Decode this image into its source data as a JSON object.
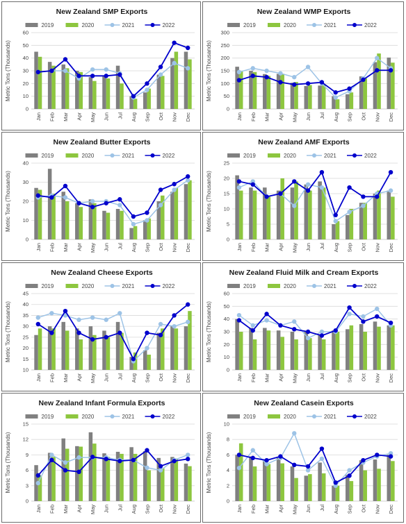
{
  "colors": {
    "2019": "#808080",
    "2020": "#8dc63f",
    "2021": "#9dc3e6",
    "2022": "#0000cc",
    "grid": "#d9d9d9",
    "axis": "#bfbfbf"
  },
  "legend_labels": [
    "2019",
    "2020",
    "2021",
    "2022"
  ],
  "chart_data": [
    {
      "type": "bar+line",
      "title": "New Zealand SMP Exports",
      "ylabel": "Metric Tons (Thousands)",
      "xlabel": "",
      "categories": [
        "Jan",
        "Feb",
        "Mar",
        "Apr",
        "May",
        "Jun",
        "Jul",
        "Aug",
        "Sep",
        "Oct",
        "Nov",
        "Dec"
      ],
      "yticks": [
        0,
        10,
        20,
        30,
        40,
        50,
        60
      ],
      "ylim": [
        0,
        60
      ],
      "grid": true,
      "legend": "top",
      "series": [
        {
          "name": "2019",
          "kind": "bar",
          "values": [
            45,
            37,
            35,
            30,
            25,
            26,
            34,
            10,
            13,
            27,
            40,
            45
          ]
        },
        {
          "name": "2020",
          "kind": "bar",
          "values": [
            41,
            34,
            32,
            29,
            22,
            24,
            20,
            8,
            16,
            26,
            45,
            39
          ]
        },
        {
          "name": "2021",
          "kind": "line",
          "values": [
            29,
            30,
            30,
            24,
            31,
            31,
            28,
            9,
            15,
            27,
            36,
            32
          ]
        },
        {
          "name": "2022",
          "kind": "line",
          "values": [
            29,
            30,
            39,
            26,
            26,
            26,
            27,
            10,
            20,
            33,
            52,
            48
          ]
        }
      ]
    },
    {
      "type": "bar+line",
      "title": "New Zealand WMP Exports",
      "ylabel": "Metric Tons (Thousands)",
      "xlabel": "",
      "categories": [
        "Jan",
        "Feb",
        "Mar",
        "Apr",
        "May",
        "Jun",
        "Jul",
        "Aug",
        "Sep",
        "Oct",
        "Nov",
        "Dec"
      ],
      "yticks": [
        0,
        50,
        100,
        150,
        200,
        250,
        300
      ],
      "ylim": [
        0,
        300
      ],
      "grid": true,
      "legend": "top",
      "series": [
        {
          "name": "2019",
          "kind": "bar",
          "values": [
            166,
            150,
            137,
            138,
            103,
            90,
            92,
            50,
            58,
            128,
            184,
            202
          ]
        },
        {
          "name": "2020",
          "kind": "bar",
          "values": [
            150,
            145,
            130,
            137,
            106,
            94,
            95,
            38,
            65,
            120,
            218,
            182
          ]
        },
        {
          "name": "2021",
          "kind": "line",
          "values": [
            145,
            160,
            150,
            140,
            125,
            165,
            100,
            45,
            70,
            120,
            200,
            160
          ]
        },
        {
          "name": "2022",
          "kind": "line",
          "values": [
            113,
            130,
            125,
            105,
            96,
            100,
            105,
            65,
            80,
            115,
            152,
            152
          ]
        }
      ]
    },
    {
      "type": "bar+line",
      "title": "New Zealand Butter Exports",
      "ylabel": "Metric Tons (Thousands)",
      "xlabel": "",
      "categories": [
        "Jan",
        "Feb",
        "Mar",
        "Apr",
        "May",
        "Jun",
        "Jul",
        "Aug",
        "Sep",
        "Oct",
        "Nov",
        "Dec"
      ],
      "yticks": [
        0,
        10,
        20,
        30,
        40
      ],
      "ylim": [
        0,
        40
      ],
      "grid": true,
      "legend": "top",
      "series": [
        {
          "name": "2019",
          "kind": "bar",
          "values": [
            27,
            37,
            25,
            19,
            21,
            15,
            16,
            6,
            10,
            20,
            25,
            29
          ]
        },
        {
          "name": "2020",
          "kind": "bar",
          "values": [
            26,
            24,
            20,
            17,
            19,
            14,
            15,
            7,
            11,
            23,
            27,
            31
          ]
        },
        {
          "name": "2021",
          "kind": "line",
          "values": [
            22,
            23,
            22,
            19,
            20,
            20,
            18,
            8,
            10,
            18,
            26,
            31
          ]
        },
        {
          "name": "2022",
          "kind": "line",
          "values": [
            23,
            22,
            28,
            19,
            17,
            19,
            21,
            12,
            14,
            26,
            29,
            33
          ]
        }
      ]
    },
    {
      "type": "bar+line",
      "title": "New Zealand AMF Exports",
      "ylabel": "Metric Tons (Thousands)",
      "xlabel": "",
      "categories": [
        "Jan",
        "Feb",
        "Mar",
        "Apr",
        "May",
        "Jun",
        "Jul",
        "Aug",
        "Sep",
        "Oct",
        "Nov",
        "Dec"
      ],
      "yticks": [
        0,
        5,
        10,
        15,
        20,
        25
      ],
      "ylim": [
        0,
        25
      ],
      "grid": true,
      "legend": "top",
      "series": [
        {
          "name": "2019",
          "kind": "bar",
          "values": [
            21,
            17,
            17,
            16,
            17,
            18,
            19,
            5,
            8,
            12,
            15,
            16
          ]
        },
        {
          "name": "2020",
          "kind": "bar",
          "values": [
            16,
            16,
            14,
            20,
            19,
            16,
            17,
            6,
            10,
            12,
            16,
            14
          ]
        },
        {
          "name": "2021",
          "kind": "line",
          "values": [
            17,
            19,
            14,
            15,
            11,
            18,
            17,
            6,
            9,
            11,
            15,
            16
          ]
        },
        {
          "name": "2022",
          "kind": "line",
          "values": [
            19,
            18,
            14,
            15,
            19,
            16,
            22,
            8,
            17,
            14,
            14,
            22
          ]
        }
      ]
    },
    {
      "type": "bar+line",
      "title": "New Zealand Cheese Exports",
      "ylabel": "Metric Tons (Thousands)",
      "xlabel": "",
      "categories": [
        "Jan",
        "Feb",
        "Mar",
        "Apr",
        "May",
        "Jun",
        "Jul",
        "Aug",
        "Sep",
        "Oct",
        "Nov",
        "Dec"
      ],
      "yticks": [
        10,
        15,
        20,
        25,
        30,
        35,
        40,
        45
      ],
      "ylim": [
        10,
        45
      ],
      "grid": true,
      "legend": "top",
      "series": [
        {
          "name": "2019",
          "kind": "bar",
          "values": [
            26,
            30,
            32,
            29,
            30,
            28,
            32,
            16,
            19,
            27,
            30,
            30
          ]
        },
        {
          "name": "2020",
          "kind": "bar",
          "values": [
            29,
            29,
            28,
            24,
            26,
            25,
            27,
            18,
            17,
            29,
            29,
            37
          ]
        },
        {
          "name": "2021",
          "kind": "line",
          "values": [
            34,
            36,
            35,
            33,
            34,
            33,
            36,
            14,
            20,
            31,
            30,
            32
          ]
        },
        {
          "name": "2022",
          "kind": "line",
          "values": [
            31,
            27,
            37,
            27,
            24,
            25,
            27,
            15,
            27,
            26,
            35,
            40
          ]
        }
      ]
    },
    {
      "type": "bar+line",
      "title": "New Zealand Fluid Milk and Cream Exports",
      "ylabel": "Metric Tons (Thousands)",
      "xlabel": "",
      "categories": [
        "Jan",
        "Feb",
        "Mar",
        "Apr",
        "May",
        "Jun",
        "Jul",
        "Aug",
        "Sep",
        "Oct",
        "Nov",
        "Dec"
      ],
      "yticks": [
        0,
        10,
        20,
        30,
        40,
        50,
        60
      ],
      "ylim": [
        0,
        60
      ],
      "grid": true,
      "legend": "top",
      "series": [
        {
          "name": "2019",
          "kind": "bar",
          "values": [
            40,
            33,
            33,
            31,
            30,
            30,
            28,
            31,
            32,
            36,
            38,
            35
          ]
        },
        {
          "name": "2020",
          "kind": "bar",
          "values": [
            30,
            24,
            31,
            26,
            24,
            25,
            24,
            30,
            35,
            30,
            34,
            35
          ]
        },
        {
          "name": "2021",
          "kind": "line",
          "values": [
            43,
            35,
            39,
            35,
            38,
            25,
            30,
            30,
            44,
            42,
            48,
            35
          ]
        },
        {
          "name": "2022",
          "kind": "line",
          "values": [
            39,
            31,
            44,
            35,
            32,
            30,
            27,
            31,
            49,
            38,
            42,
            37
          ]
        }
      ]
    },
    {
      "type": "bar+line",
      "title": "New Zealand Infant Formula Exports",
      "ylabel": "Metric Tons (Thousands)",
      "xlabel": "",
      "categories": [
        "Jan",
        "Feb",
        "Mar",
        "Apr",
        "May",
        "Jun",
        "Jul",
        "Aug",
        "Sep",
        "Oct",
        "Nov",
        "Dec"
      ],
      "yticks": [
        0,
        3,
        6,
        9,
        12,
        15
      ],
      "ylim": [
        0,
        15
      ],
      "grid": true,
      "legend": "top",
      "series": [
        {
          "name": "2019",
          "kind": "bar",
          "values": [
            7,
            9.4,
            12.2,
            10.7,
            13.4,
            9.3,
            9.6,
            10.5,
            9.7,
            8.4,
            8.6,
            7.3
          ]
        },
        {
          "name": "2020",
          "kind": "bar",
          "values": [
            5,
            8.6,
            10.2,
            10.6,
            11.2,
            8.6,
            9.2,
            9.2,
            6,
            6.4,
            8.3,
            6.8
          ]
        },
        {
          "name": "2021",
          "kind": "line",
          "values": [
            3.5,
            9,
            7.5,
            8.5,
            8.5,
            8.5,
            8,
            8,
            6.5,
            6,
            8,
            9
          ]
        },
        {
          "name": "2022",
          "kind": "line",
          "values": [
            5,
            8,
            6,
            5.7,
            8.6,
            8.2,
            7.8,
            8,
            9.9,
            6.8,
            7.8,
            8.2
          ]
        }
      ]
    },
    {
      "type": "bar+line",
      "title": "New Zealand Casein Exports",
      "ylabel": "Metric Tons (Thousands)",
      "xlabel": "",
      "categories": [
        "Jan",
        "Feb",
        "Mar",
        "Apr",
        "May",
        "Jun",
        "Jul",
        "Aug",
        "Sep",
        "Oct",
        "Nov",
        "Dec"
      ],
      "yticks": [
        0,
        2,
        4,
        6,
        8,
        10
      ],
      "ylim": [
        0,
        10
      ],
      "grid": true,
      "legend": "top",
      "series": [
        {
          "name": "2019",
          "kind": "bar",
          "values": [
            6,
            5.8,
            5.4,
            5.6,
            4.5,
            3.3,
            5,
            2,
            3.4,
            5.3,
            5.4,
            6
          ]
        },
        {
          "name": "2020",
          "kind": "bar",
          "values": [
            7.5,
            4.5,
            4.8,
            4.9,
            3,
            3.5,
            3.6,
            2,
            2.6,
            4,
            4.2,
            5.2
          ]
        },
        {
          "name": "2021",
          "kind": "line",
          "values": [
            4.3,
            6.6,
            4.8,
            5.6,
            8.8,
            4,
            5.5,
            2,
            4,
            5,
            5.8,
            6.2
          ]
        },
        {
          "name": "2022",
          "kind": "line",
          "values": [
            6,
            5.6,
            5.3,
            5.8,
            4.7,
            4.5,
            6.8,
            2.4,
            3.3,
            5.3,
            6,
            5.8
          ]
        }
      ]
    }
  ]
}
